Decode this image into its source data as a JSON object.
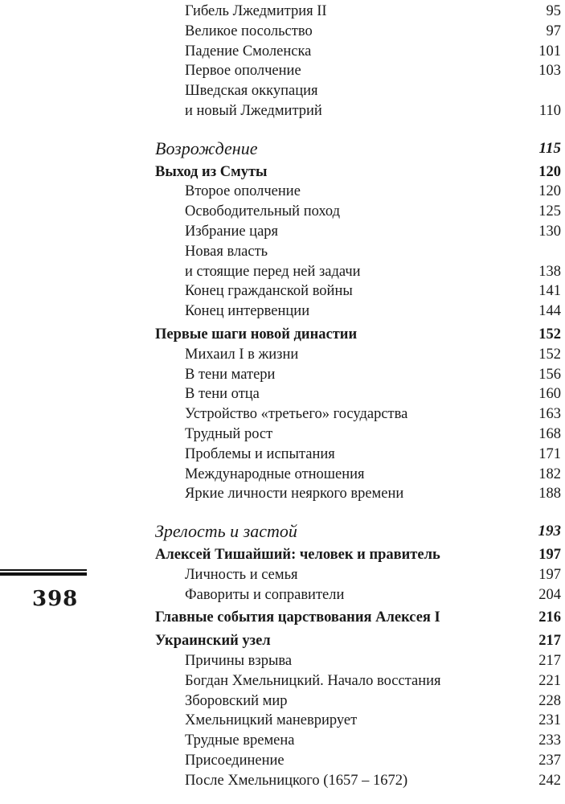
{
  "folio": "398",
  "entries": [
    {
      "level": "sub",
      "title": "Гибель Лжедмитрия II",
      "page": "95"
    },
    {
      "level": "sub",
      "title": "Великое посольство",
      "page": "97"
    },
    {
      "level": "sub",
      "title": "Падение Смоленска",
      "page": "101"
    },
    {
      "level": "sub",
      "title": "Первое ополчение",
      "page": "103"
    },
    {
      "level": "sub",
      "title": "Шведская оккупация",
      "page": ""
    },
    {
      "level": "sub",
      "title": "и новый Лжедмитрий",
      "page": "110"
    },
    {
      "level": "part",
      "title": "Возрождение",
      "page": "115"
    },
    {
      "level": "sec",
      "title": "Выход из Смуты",
      "page": "120"
    },
    {
      "level": "sub",
      "title": "Второе ополчение",
      "page": "120"
    },
    {
      "level": "sub",
      "title": "Освободительный поход",
      "page": "125"
    },
    {
      "level": "sub",
      "title": "Избрание царя",
      "page": "130"
    },
    {
      "level": "sub",
      "title": "Новая власть",
      "page": ""
    },
    {
      "level": "sub",
      "title": "и стоящие перед ней задачи",
      "page": "138"
    },
    {
      "level": "sub",
      "title": "Конец гражданской войны",
      "page": "141"
    },
    {
      "level": "sub",
      "title": "Конец интервенции",
      "page": "144"
    },
    {
      "level": "sec",
      "title": "Первые шаги новой династии",
      "page": "152"
    },
    {
      "level": "sub",
      "title": "Михаил I в жизни",
      "page": "152"
    },
    {
      "level": "sub",
      "title": "В тени матери",
      "page": "156"
    },
    {
      "level": "sub",
      "title": "В тени отца",
      "page": "160"
    },
    {
      "level": "sub",
      "title": "Устройство «третьего» государства",
      "page": "163"
    },
    {
      "level": "sub",
      "title": "Трудный рост",
      "page": "168"
    },
    {
      "level": "sub",
      "title": "Проблемы и испытания",
      "page": "171"
    },
    {
      "level": "sub",
      "title": "Международные отношения",
      "page": "182"
    },
    {
      "level": "sub",
      "title": "Яркие личности неяркого времени",
      "page": "188"
    },
    {
      "level": "part",
      "title": "Зрелость и застой",
      "page": "193"
    },
    {
      "level": "sec",
      "title": "Алексей Тишайший: человек и правитель",
      "page": "197"
    },
    {
      "level": "sub",
      "title": "Личность и семья",
      "page": "197"
    },
    {
      "level": "sub",
      "title": "Фавориты и соправители",
      "page": "204"
    },
    {
      "level": "sec",
      "title": "Главные события царствования Алексея I",
      "page": "216"
    },
    {
      "level": "sec",
      "title": "Украинский узел",
      "page": "217"
    },
    {
      "level": "sub",
      "title": "Причины взрыва",
      "page": "217"
    },
    {
      "level": "sub",
      "title": "Богдан Хмельницкий. Начало восстания",
      "page": "221"
    },
    {
      "level": "sub",
      "title": "Зборовский мир",
      "page": "228"
    },
    {
      "level": "sub",
      "title": "Хмельницкий маневрирует",
      "page": "231"
    },
    {
      "level": "sub",
      "title": "Трудные времена",
      "page": "233"
    },
    {
      "level": "sub",
      "title": "Присоединение",
      "page": "237"
    },
    {
      "level": "sub",
      "title": "После Хмельницкого (1657 – 1672)",
      "page": "242"
    }
  ]
}
